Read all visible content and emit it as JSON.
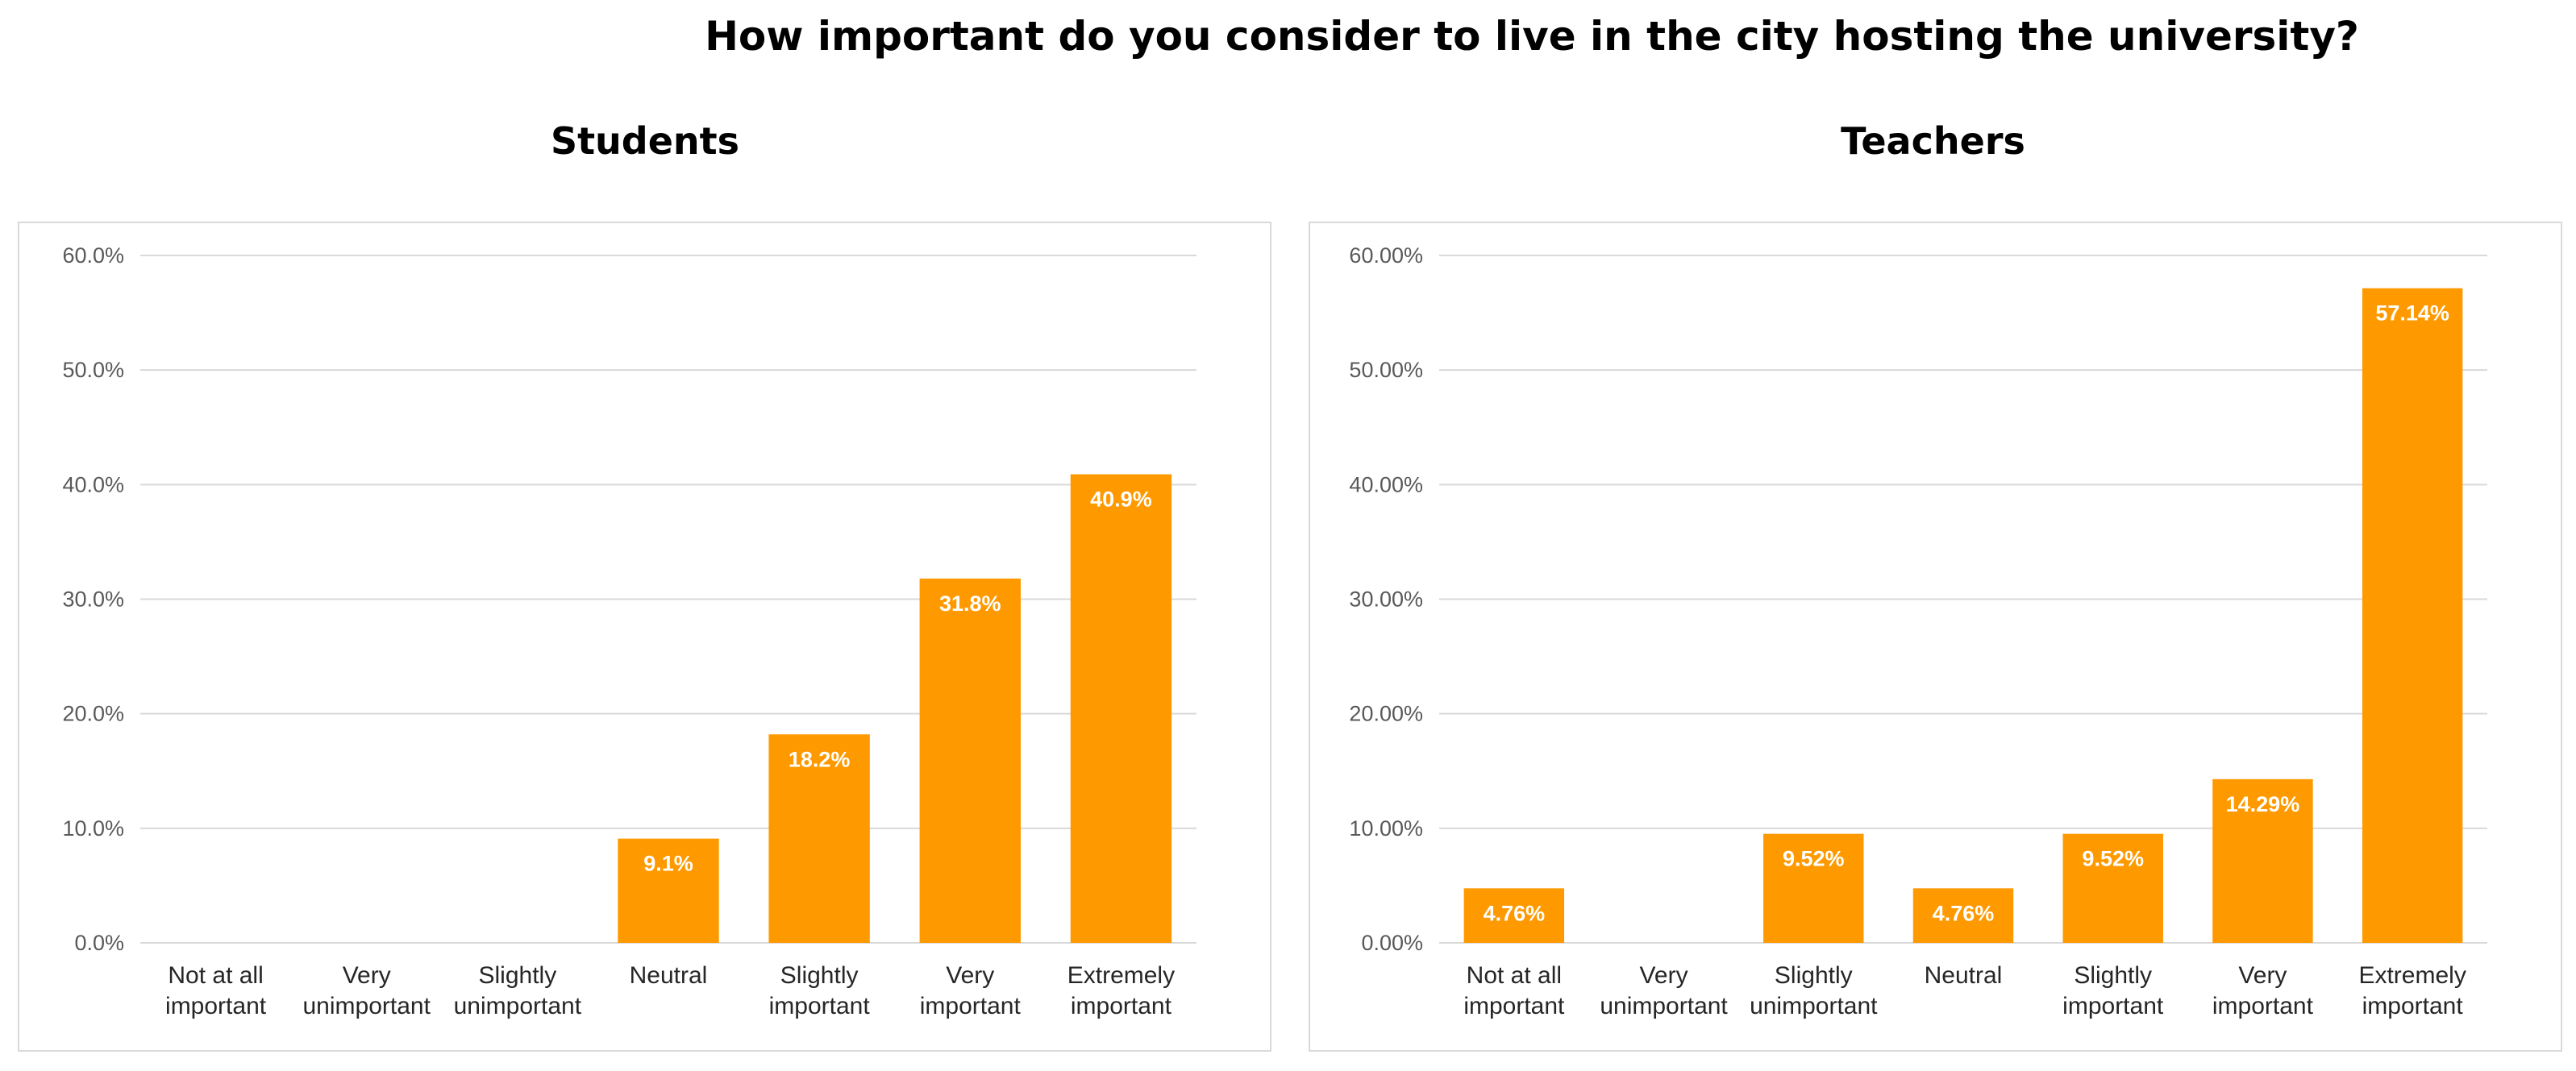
{
  "figure": {
    "title": "How important do you consider to live in the city hosting the university?"
  },
  "chart_data": [
    {
      "type": "bar",
      "title": "Students",
      "categories": [
        [
          "Not at all",
          "important"
        ],
        [
          "Very",
          "unimportant"
        ],
        [
          "Slightly",
          "unimportant"
        ],
        [
          "Neutral"
        ],
        [
          "Slightly",
          "important"
        ],
        [
          "Very",
          "important"
        ],
        [
          "Extremely",
          "important"
        ]
      ],
      "values": [
        0,
        0,
        0,
        9.1,
        18.2,
        31.8,
        40.9
      ],
      "data_labels": [
        "",
        "",
        "",
        "9.1%",
        "18.2%",
        "31.8%",
        "40.9%"
      ],
      "ylim": [
        0,
        60
      ],
      "yticks": [
        "0.0%",
        "10.0%",
        "20.0%",
        "30.0%",
        "40.0%",
        "50.0%",
        "60.0%"
      ],
      "grid": true,
      "bar_color": "#ff9900",
      "label_color": "#ffffff",
      "xlabel": "",
      "ylabel": ""
    },
    {
      "type": "bar",
      "title": "Teachers",
      "categories": [
        [
          "Not at all",
          "important"
        ],
        [
          "Very",
          "unimportant"
        ],
        [
          "Slightly",
          "unimportant"
        ],
        [
          "Neutral"
        ],
        [
          "Slightly",
          "important"
        ],
        [
          "Very",
          "important"
        ],
        [
          "Extremely",
          "important"
        ]
      ],
      "values": [
        4.76,
        0,
        9.52,
        4.76,
        9.52,
        14.29,
        57.14
      ],
      "data_labels": [
        "4.76%",
        "",
        "9.52%",
        "4.76%",
        "9.52%",
        "14.29%",
        "57.14%"
      ],
      "ylim": [
        0,
        60
      ],
      "yticks": [
        "0.00%",
        "10.00%",
        "20.00%",
        "30.00%",
        "40.00%",
        "50.00%",
        "60.00%"
      ],
      "grid": true,
      "bar_color": "#ff9900",
      "label_color": "#ffffff",
      "xlabel": "",
      "ylabel": ""
    }
  ]
}
